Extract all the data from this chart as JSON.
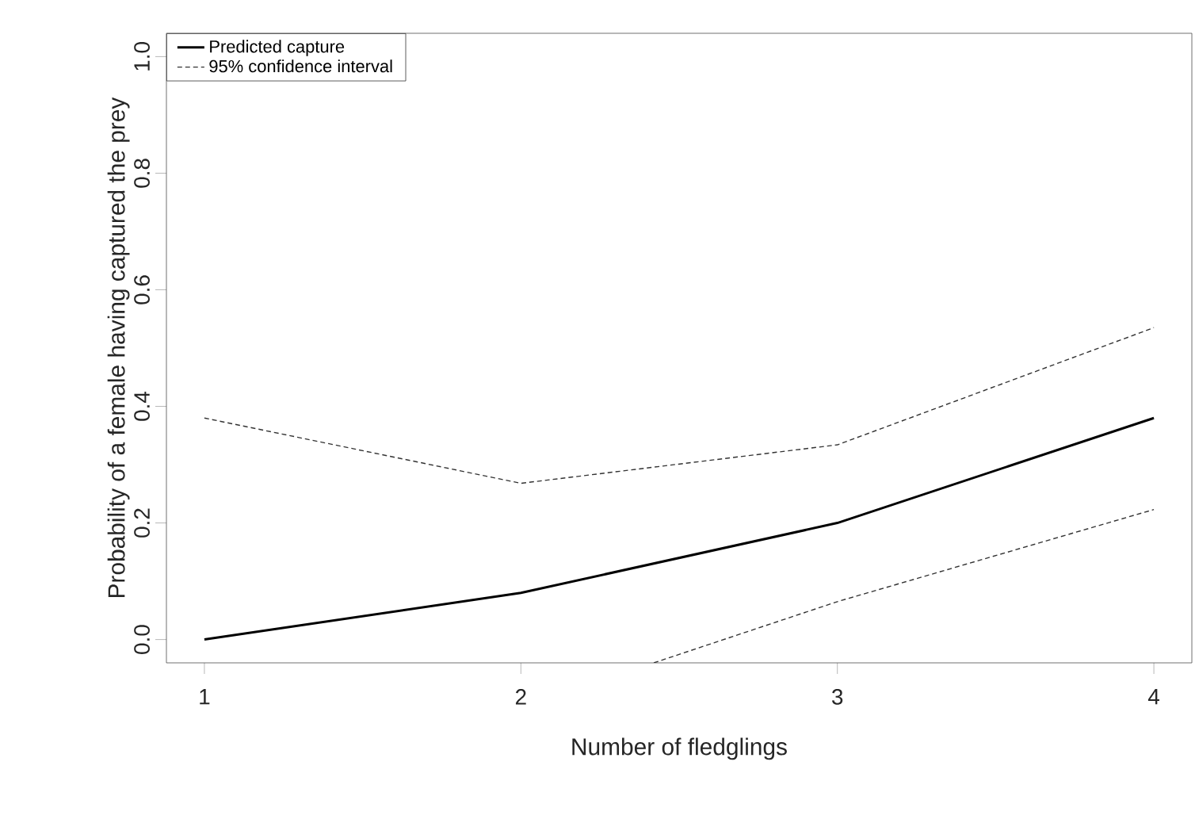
{
  "chart_data": {
    "type": "line",
    "xlabel": "Number of fledglings",
    "ylabel": "Probability of a female having captured the prey",
    "x": [
      1,
      2,
      3,
      4
    ],
    "xlim": [
      0.88,
      4.12
    ],
    "ylim": [
      -0.04,
      1.04
    ],
    "xticks": [
      1,
      2,
      3,
      4
    ],
    "yticks": [
      {
        "value": 0,
        "label": "0.0"
      },
      0.2,
      0.4,
      0.6,
      0.8,
      {
        "value": 1,
        "label": "1.0"
      }
    ],
    "legend": "top left",
    "series": [
      {
        "name": "Predicted capture",
        "color": "#000000",
        "line_style": "solid",
        "values": [
          0.0,
          0.08,
          0.2,
          0.38
        ]
      },
      {
        "name": "95% confidence interval",
        "color": "#333333",
        "line_style": "dashed",
        "values": [
          0.38,
          0.268,
          0.334,
          0.535
        ]
      },
      {
        "color": "#333333",
        "line_style": "dashed",
        "x": [
          2.42,
          3,
          4
        ],
        "values": [
          -0.04,
          0.065,
          0.223
        ]
      }
    ]
  }
}
